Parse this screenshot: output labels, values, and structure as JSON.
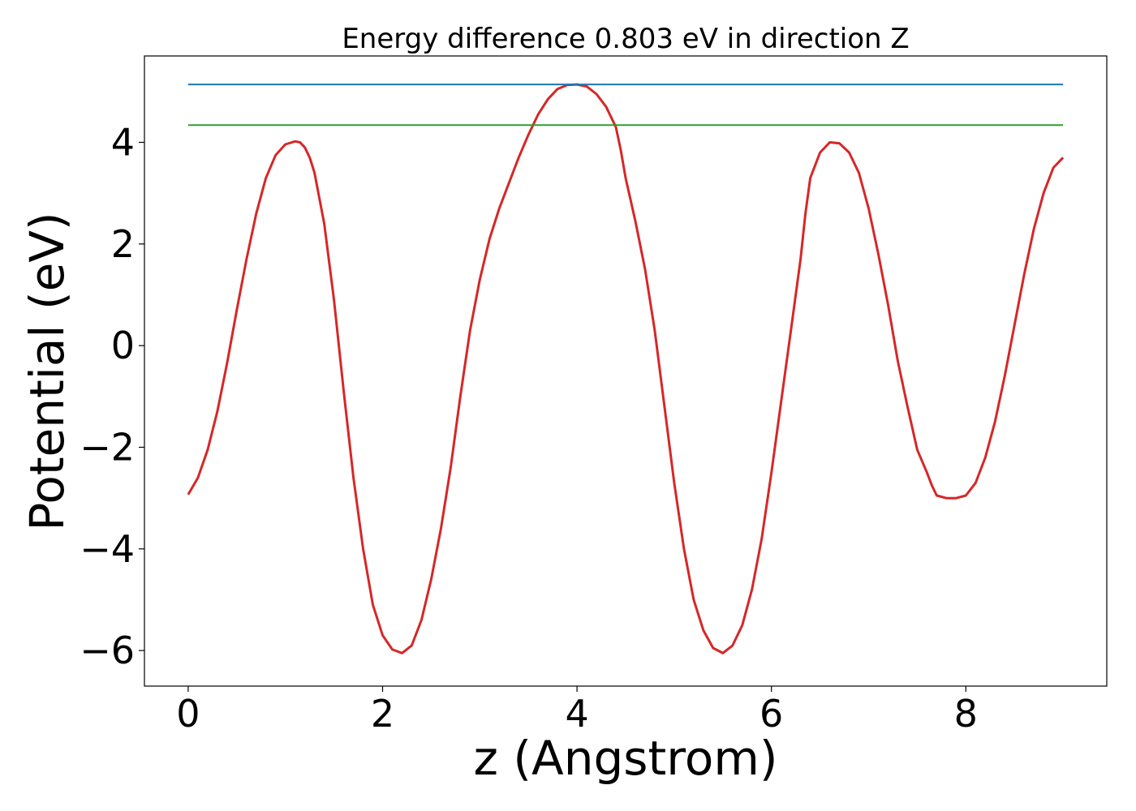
{
  "chart_data": {
    "type": "line",
    "title": "Energy difference 0.803 eV in direction Z",
    "xlabel": "z (Angstrom)",
    "ylabel": "Potential (eV)",
    "xlim": [
      -0.45,
      9.45
    ],
    "ylim": [
      -6.7,
      5.7
    ],
    "xticks": [
      0,
      2,
      4,
      6,
      8
    ],
    "xtick_labels": [
      "0",
      "2",
      "4",
      "6",
      "8"
    ],
    "yticks": [
      -6,
      -4,
      -2,
      0,
      2,
      4
    ],
    "ytick_labels": [
      "−6",
      "−4",
      "−2",
      "0",
      "2",
      "4"
    ],
    "grid": false,
    "series": [
      {
        "kind": "curve",
        "color": "#d62728",
        "x": [
          0,
          0.1,
          0.2,
          0.3,
          0.4,
          0.5,
          0.6,
          0.7,
          0.8,
          0.9,
          1.0,
          1.1,
          1.15,
          1.2,
          1.25,
          1.3,
          1.4,
          1.5,
          1.6,
          1.7,
          1.8,
          1.9,
          2.0,
          2.1,
          2.2,
          2.3,
          2.4,
          2.5,
          2.55,
          2.6,
          2.7,
          2.8,
          2.9,
          3.0,
          3.1,
          3.2,
          3.3,
          3.4,
          3.5,
          3.6,
          3.7,
          3.8,
          3.9,
          4.0,
          4.1,
          4.2,
          4.3,
          4.4,
          4.45,
          4.5,
          4.6,
          4.7,
          4.8,
          4.9,
          5.0,
          5.1,
          5.2,
          5.3,
          5.4,
          5.5,
          5.6,
          5.7,
          5.8,
          5.9,
          6.0,
          6.1,
          6.2,
          6.3,
          6.35,
          6.4,
          6.5,
          6.6,
          6.7,
          6.8,
          6.9,
          7.0,
          7.1,
          7.2,
          7.3,
          7.4,
          7.5,
          7.6,
          7.65,
          7.7,
          7.8,
          7.9,
          8.0,
          8.1,
          8.2,
          8.3,
          8.4,
          8.5,
          8.6,
          8.7,
          8.8,
          8.9,
          9.0
        ],
        "y": [
          -2.93,
          -2.6,
          -2.05,
          -1.3,
          -0.35,
          0.7,
          1.7,
          2.6,
          3.3,
          3.75,
          3.96,
          4.02,
          4.0,
          3.9,
          3.7,
          3.4,
          2.4,
          0.9,
          -0.9,
          -2.6,
          -4.0,
          -5.1,
          -5.7,
          -5.98,
          -6.05,
          -5.9,
          -5.4,
          -4.6,
          -4.1,
          -3.6,
          -2.4,
          -1.0,
          0.3,
          1.3,
          2.1,
          2.7,
          3.2,
          3.7,
          4.15,
          4.55,
          4.85,
          5.05,
          5.13,
          5.14,
          5.1,
          4.95,
          4.7,
          4.3,
          3.85,
          3.3,
          2.45,
          1.5,
          0.3,
          -1.2,
          -2.7,
          -4.0,
          -5.0,
          -5.6,
          -5.95,
          -6.05,
          -5.9,
          -5.5,
          -4.8,
          -3.8,
          -2.5,
          -1.1,
          0.3,
          1.7,
          2.6,
          3.3,
          3.8,
          4.0,
          3.98,
          3.8,
          3.4,
          2.7,
          1.8,
          0.8,
          -0.3,
          -1.2,
          -2.05,
          -2.5,
          -2.75,
          -2.95,
          -3.0,
          -3.0,
          -2.95,
          -2.7,
          -2.2,
          -1.5,
          -0.6,
          0.4,
          1.4,
          2.3,
          3.0,
          3.5,
          3.7
        ]
      },
      {
        "kind": "hline",
        "color": "#1f77b4",
        "y": 5.14,
        "x": [
          0,
          9
        ]
      },
      {
        "kind": "hline",
        "color": "#2ca02c",
        "y": 4.34,
        "x": [
          0,
          9
        ]
      }
    ]
  }
}
